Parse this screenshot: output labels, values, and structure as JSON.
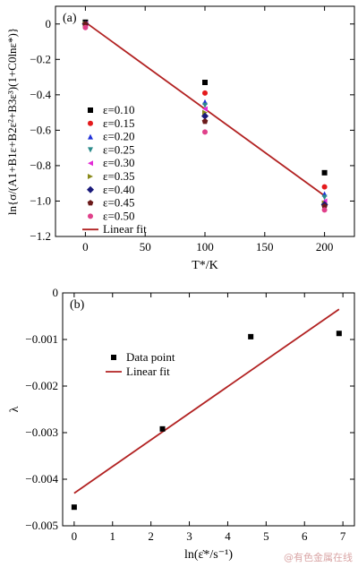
{
  "chart_data": [
    {
      "type": "scatter",
      "panel_label": "(a)",
      "xlabel": "T*/K",
      "ylabel": "ln{σ/(A1+B1ε+B2ε²+B3ε³)(1+C0lnε*)}",
      "xlim": [
        -25,
        225
      ],
      "ylim": [
        -1.2,
        0.1
      ],
      "xticks": [
        0,
        50,
        100,
        150,
        200
      ],
      "yticks": [
        0,
        -0.2,
        -0.4,
        -0.6,
        -0.8,
        -1.0,
        -1.2
      ],
      "xtick_labels": [
        "0",
        "50",
        "100",
        "150",
        "200"
      ],
      "ytick_labels": [
        "0",
        "−0.2",
        "−0.4",
        "−0.6",
        "−0.8",
        "−1.0",
        "−1.2"
      ],
      "grid": false,
      "legend_position": "bottom-left",
      "series": [
        {
          "name": "ε=0.10",
          "marker": "square",
          "color": "#000000",
          "x": [
            0,
            100,
            200
          ],
          "y": [
            0.01,
            -0.33,
            -0.84
          ]
        },
        {
          "name": "ε=0.15",
          "marker": "circle",
          "color": "#e41a1c",
          "x": [
            0,
            100,
            200
          ],
          "y": [
            0.0,
            -0.39,
            -0.92
          ]
        },
        {
          "name": "ε=0.20",
          "marker": "triangle-up",
          "color": "#1f2fd8",
          "x": [
            0,
            100,
            200
          ],
          "y": [
            0.0,
            -0.44,
            -0.96
          ]
        },
        {
          "name": "ε=0.25",
          "marker": "triangle-down",
          "color": "#2a8a8a",
          "x": [
            0,
            100,
            200
          ],
          "y": [
            0.0,
            -0.46,
            -0.98
          ]
        },
        {
          "name": "ε=0.30",
          "marker": "triangle-left",
          "color": "#e22ad6",
          "x": [
            0,
            100,
            200
          ],
          "y": [
            0.0,
            -0.48,
            -1.0
          ]
        },
        {
          "name": "ε=0.35",
          "marker": "triangle-right",
          "color": "#8a8a1a",
          "x": [
            0,
            100,
            200
          ],
          "y": [
            0.0,
            -0.5,
            -1.01
          ]
        },
        {
          "name": "ε=0.40",
          "marker": "diamond",
          "color": "#1a1a7a",
          "x": [
            0,
            100,
            200
          ],
          "y": [
            0.0,
            -0.52,
            -1.02
          ]
        },
        {
          "name": "ε=0.45",
          "marker": "pentagon",
          "color": "#6b1a1a",
          "x": [
            0,
            100,
            200
          ],
          "y": [
            0.0,
            -0.55,
            -1.03
          ]
        },
        {
          "name": "ε=0.50",
          "marker": "circle",
          "color": "#e0408a",
          "x": [
            0,
            100,
            200
          ],
          "y": [
            -0.02,
            -0.61,
            -1.05
          ]
        }
      ],
      "fit": {
        "name": "Linear fit",
        "color": "#b22222",
        "x": [
          0,
          200
        ],
        "y": [
          0.01,
          -0.97
        ]
      }
    },
    {
      "type": "scatter",
      "panel_label": "(b)",
      "xlabel": "ln(ε̇*/s⁻¹)",
      "ylabel": "λ",
      "xlim": [
        -0.3,
        7.3
      ],
      "ylim": [
        -0.005,
        0
      ],
      "xticks": [
        0,
        1,
        2,
        3,
        4,
        5,
        6,
        7
      ],
      "yticks": [
        0,
        -0.001,
        -0.002,
        -0.003,
        -0.004,
        -0.005
      ],
      "xtick_labels": [
        "0",
        "1",
        "2",
        "3",
        "4",
        "5",
        "6",
        "7"
      ],
      "ytick_labels": [
        "0",
        "−0.001",
        "−0.002",
        "−0.003",
        "−0.004",
        "−0.005"
      ],
      "grid": false,
      "legend_position": "top-left",
      "series": [
        {
          "name": "Data point",
          "marker": "square",
          "color": "#000000",
          "x": [
            0,
            2.3,
            4.6,
            6.9
          ],
          "y": [
            -0.0046,
            -0.00292,
            -0.00094,
            -0.00087
          ]
        }
      ],
      "fit": {
        "name": "Linear fit",
        "color": "#b22222",
        "x": [
          0,
          6.9
        ],
        "y": [
          -0.0043,
          -0.00035
        ]
      }
    }
  ],
  "watermark": "@有色金属在线"
}
